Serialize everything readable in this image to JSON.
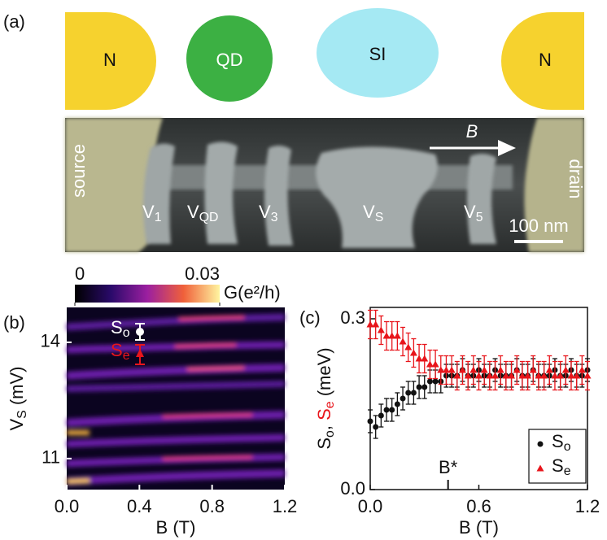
{
  "panel_a": {
    "label": "(a)",
    "shapes": [
      "N",
      "QD",
      "SI",
      "N"
    ],
    "sem": {
      "source": "source",
      "drain": "drain",
      "field": "B",
      "scale_bar": "100 nm",
      "gates": [
        [
          {
            "text": "V"
          },
          {
            "text": "1",
            "sub": true
          }
        ],
        [
          {
            "text": "V"
          },
          {
            "text": "QD",
            "sub": true
          }
        ],
        [
          {
            "text": "V"
          },
          {
            "text": "3",
            "sub": true
          }
        ],
        [
          {
            "text": "V"
          },
          {
            "text": "S",
            "sub": true
          }
        ],
        [
          {
            "text": "V"
          },
          {
            "text": "5",
            "sub": true
          }
        ]
      ]
    }
  },
  "chart_data": [
    {
      "type": "heatmap",
      "label": "(b)",
      "xlabel": "B (T)",
      "ylabel": [
        {
          "text": "V"
        },
        {
          "text": "S",
          "sub": true
        },
        {
          "text": " (mV)"
        }
      ],
      "xlim": [
        0,
        1.2
      ],
      "xticks": [
        {
          "value": 0,
          "label": "0.0"
        },
        0.4,
        0.8,
        1.2
      ],
      "ylim": [
        10.2,
        14.9
      ],
      "yticks": [
        14,
        11
      ],
      "colorbar": {
        "label": "G(e²/h)",
        "lim": [
          0,
          0.03
        ],
        "ticks": [
          0,
          0.03
        ]
      },
      "annotations": [
        {
          "parts": [
            {
              "text": "S"
            },
            {
              "text": "o",
              "sub": true
            }
          ],
          "color": "#ffffff"
        },
        {
          "parts": [
            {
              "text": "S"
            },
            {
              "text": "e",
              "sub": true
            }
          ],
          "color": "#e8151b"
        }
      ]
    },
    {
      "type": "scatter",
      "label": "(c)",
      "xlabel": "B (T)",
      "ylabel": [
        {
          "text": "S"
        },
        {
          "text": "o",
          "sub": true
        },
        {
          "text": ", "
        },
        {
          "text": "S",
          "color": "#e8151b"
        },
        {
          "text": "e",
          "sub": true,
          "color": "#e8151b"
        },
        {
          "text": " (meV)"
        }
      ],
      "xlim": [
        0,
        1.2
      ],
      "xticks": [
        {
          "value": 0,
          "label": "0.0"
        },
        0.6,
        1.2
      ],
      "ylim": [
        0,
        0.32
      ],
      "yticks": [
        {
          "value": 0,
          "label": "0.0"
        },
        0.3
      ],
      "annotation": {
        "text": "B*",
        "x": 0.43
      },
      "legend": "lower right",
      "x": [
        0,
        0.03,
        0.06,
        0.09,
        0.12,
        0.15,
        0.18,
        0.21,
        0.24,
        0.27,
        0.3,
        0.33,
        0.36,
        0.39,
        0.42,
        0.45,
        0.48,
        0.51,
        0.54,
        0.57,
        0.6,
        0.63,
        0.66,
        0.69,
        0.72,
        0.75,
        0.78,
        0.81,
        0.84,
        0.87,
        0.9,
        0.93,
        0.96,
        0.99,
        1.02,
        1.05,
        1.08,
        1.11,
        1.14,
        1.17,
        1.2
      ],
      "series": [
        {
          "name": [
            {
              "text": "S"
            },
            {
              "text": "o",
              "sub": true
            }
          ],
          "color": "#111111",
          "marker": "circle",
          "error": 0.02,
          "values": [
            0.12,
            0.11,
            0.13,
            0.14,
            0.14,
            0.15,
            0.16,
            0.17,
            0.17,
            0.18,
            0.18,
            0.19,
            0.19,
            0.19,
            0.2,
            0.2,
            0.2,
            0.21,
            0.2,
            0.2,
            0.21,
            0.2,
            0.2,
            0.21,
            0.2,
            0.2,
            0.2,
            0.21,
            0.2,
            0.2,
            0.21,
            0.2,
            0.2,
            0.2,
            0.21,
            0.2,
            0.2,
            0.21,
            0.2,
            0.2,
            0.21
          ]
        },
        {
          "name": [
            {
              "text": "S"
            },
            {
              "text": "e",
              "sub": true
            }
          ],
          "color": "#e8151b",
          "marker": "triangle",
          "error": 0.025,
          "values": [
            0.29,
            0.29,
            0.28,
            0.27,
            0.27,
            0.27,
            0.26,
            0.25,
            0.24,
            0.23,
            0.23,
            0.22,
            0.22,
            0.21,
            0.21,
            0.21,
            0.2,
            0.21,
            0.2,
            0.21,
            0.2,
            0.21,
            0.2,
            0.2,
            0.21,
            0.2,
            0.2,
            0.21,
            0.2,
            0.2,
            0.21,
            0.2,
            0.2,
            0.21,
            0.2,
            0.2,
            0.21,
            0.2,
            0.2,
            0.21,
            0.2
          ]
        }
      ]
    }
  ]
}
